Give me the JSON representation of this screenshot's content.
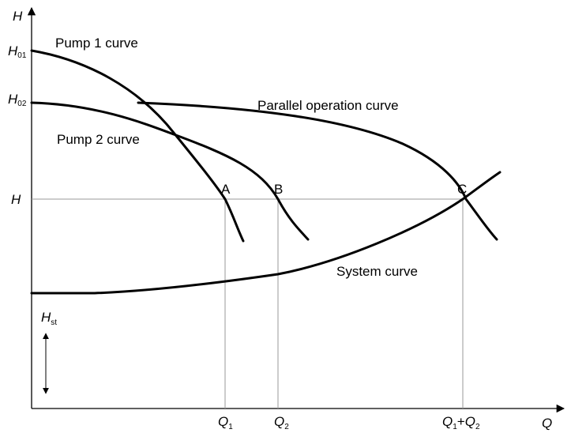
{
  "axes": {
    "y_label": "H",
    "x_label": "Q"
  },
  "y_ticks": {
    "h01": {
      "main": "H",
      "sub": "01"
    },
    "h02": {
      "main": "H",
      "sub": "02"
    },
    "h": {
      "main": "H"
    }
  },
  "x_ticks": {
    "q1": {
      "main": "Q",
      "sub": "1"
    },
    "q2": {
      "main": "Q",
      "sub": "2"
    },
    "q12": {
      "q1": "Q",
      "s1": "1",
      "plus": "+",
      "q2": "Q",
      "s2": "2"
    }
  },
  "curve_labels": {
    "pump1": "Pump 1 curve",
    "pump2": "Pump 2 curve",
    "parallel": "Parallel operation curve",
    "system": "System curve"
  },
  "points": {
    "a": "A",
    "b": "B",
    "c": "C"
  },
  "static_head": {
    "main": "H",
    "sub": "st"
  },
  "colors": {
    "curve": "#000000",
    "guide": "#9a9a9a"
  }
}
